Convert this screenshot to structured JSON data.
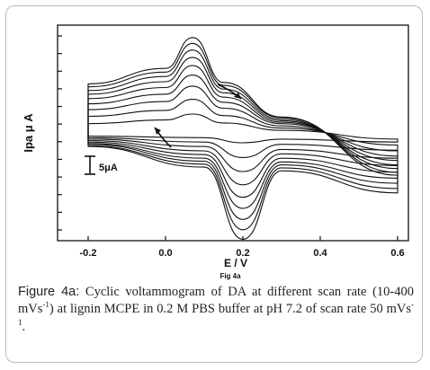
{
  "chart_data": {
    "type": "line",
    "title": "",
    "xlabel": "E / V",
    "ylabel": "Ipa μ A",
    "x_ticks": [
      "-0.2",
      "0.0",
      "0.2",
      "0.4",
      "0.6"
    ],
    "xlim": [
      -0.2,
      0.6
    ],
    "figure_label": "Fig 4a",
    "scale_bar_label": "5μA",
    "scale_bar_value_uA": 5,
    "y_tick_count": 12,
    "grid": false,
    "series_count": 9,
    "series": [
      {
        "scan_rate_index": 1,
        "x": [
          -0.2,
          0.0,
          0.07,
          0.15,
          0.3,
          0.6,
          0.6,
          0.3,
          0.2,
          0.1,
          -0.2
        ],
        "y": [
          1.5,
          2.0,
          2.8,
          1.6,
          0.6,
          -0.6,
          -1.0,
          -0.6,
          -1.1,
          -0.4,
          -0.2
        ]
      },
      {
        "scan_rate_index": 2,
        "x": [
          -0.2,
          0.0,
          0.07,
          0.15,
          0.3,
          0.6,
          0.6,
          0.3,
          0.2,
          0.1,
          -0.2
        ],
        "y": [
          2.5,
          3.3,
          4.8,
          2.6,
          0.9,
          -1.4,
          -2.1,
          -1.3,
          -3.1,
          -1.0,
          -0.4
        ]
      },
      {
        "scan_rate_index": 3,
        "x": [
          -0.2,
          0.0,
          0.07,
          0.15,
          0.3,
          0.6,
          0.6,
          0.3,
          0.2,
          0.1,
          -0.2
        ],
        "y": [
          3.4,
          4.5,
          6.6,
          3.6,
          1.2,
          -2.2,
          -3.2,
          -2.0,
          -5.0,
          -1.6,
          -0.6
        ]
      },
      {
        "scan_rate_index": 4,
        "x": [
          -0.2,
          0.0,
          0.07,
          0.15,
          0.3,
          0.6,
          0.6,
          0.3,
          0.2,
          0.1,
          -0.2
        ],
        "y": [
          4.2,
          5.5,
          8.1,
          4.4,
          1.5,
          -2.9,
          -4.2,
          -2.6,
          -6.8,
          -2.2,
          -0.8
        ]
      },
      {
        "scan_rate_index": 5,
        "x": [
          -0.2,
          0.0,
          0.07,
          0.15,
          0.3,
          0.6,
          0.6,
          0.3,
          0.2,
          0.1,
          -0.2
        ],
        "y": [
          4.9,
          6.4,
          9.4,
          5.1,
          1.7,
          -3.5,
          -5.1,
          -3.2,
          -8.5,
          -2.7,
          -1.0
        ]
      },
      {
        "scan_rate_index": 6,
        "x": [
          -0.2,
          0.0,
          0.07,
          0.15,
          0.3,
          0.6,
          0.6,
          0.3,
          0.2,
          0.1,
          -0.2
        ],
        "y": [
          5.5,
          7.2,
          10.5,
          5.7,
          1.9,
          -4.1,
          -5.9,
          -3.7,
          -10.0,
          -3.2,
          -1.2
        ]
      },
      {
        "scan_rate_index": 7,
        "x": [
          -0.2,
          0.0,
          0.07,
          0.15,
          0.3,
          0.6,
          0.6,
          0.3,
          0.2,
          0.1,
          -0.2
        ],
        "y": [
          6.0,
          7.9,
          11.5,
          6.2,
          2.1,
          -4.6,
          -6.6,
          -4.1,
          -11.5,
          -3.6,
          -1.3
        ]
      },
      {
        "scan_rate_index": 8,
        "x": [
          -0.2,
          0.0,
          0.07,
          0.15,
          0.3,
          0.6,
          0.6,
          0.3,
          0.2,
          0.1,
          -0.2
        ],
        "y": [
          6.5,
          8.5,
          12.4,
          6.7,
          2.3,
          -5.1,
          -7.3,
          -4.5,
          -12.9,
          -4.0,
          -1.5
        ]
      },
      {
        "scan_rate_index": 9,
        "x": [
          -0.2,
          0.0,
          0.07,
          0.15,
          0.3,
          0.6,
          0.6,
          0.3,
          0.2,
          0.1,
          -0.2
        ],
        "y": [
          6.9,
          9.0,
          13.2,
          7.1,
          2.4,
          -5.5,
          -7.9,
          -4.9,
          -14.2,
          -4.4,
          -1.6
        ]
      }
    ]
  },
  "caption": {
    "lead": "Figure 4a:",
    "t1": "Cyclic voltammogram of DA at different scan rate (10-400 mVs",
    "sup1": "-1",
    "t2": ") at lignin MCPE in 0.2 M PBS buffer at pH 7.2 of scan rate 50 mVs",
    "sup2": "-1",
    "t3": "."
  }
}
